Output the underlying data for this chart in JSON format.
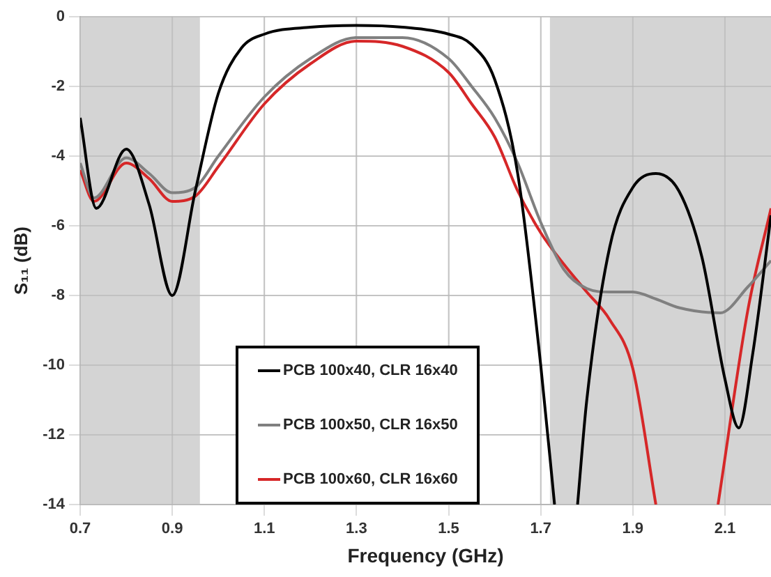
{
  "chart_data": {
    "type": "line",
    "xlabel": "Frequency (GHz)",
    "ylabel": "S₁₁ (dB)",
    "xlim": [
      0.7,
      2.2
    ],
    "xticks": [
      0.7,
      0.9,
      1.1,
      1.3,
      1.5,
      1.7,
      1.9,
      2.1
    ],
    "ylim": [
      -14,
      0
    ],
    "yticks": [
      0,
      -2,
      -4,
      -6,
      -8,
      -10,
      -12,
      -14
    ],
    "grid": true,
    "legend": "bottom",
    "marker": "none",
    "line_style": "solid",
    "bands": [
      {
        "axis": "x",
        "from": 0.7,
        "to": 0.96,
        "color": "#d4d4d4"
      },
      {
        "axis": "x",
        "from": 1.72,
        "to": 2.2,
        "color": "#d4d4d4"
      }
    ],
    "series": [
      {
        "name": "PCB 100x40, CLR 16x40",
        "color": "#000000",
        "x": [
          0.7,
          0.735,
          0.8,
          0.85,
          0.9,
          0.95,
          1.0,
          1.05,
          1.1,
          1.2,
          1.3,
          1.4,
          1.5,
          1.55,
          1.6,
          1.65,
          1.7,
          1.73,
          1.755,
          1.78,
          1.8,
          1.85,
          1.9,
          1.95,
          2.0,
          2.05,
          2.1,
          2.13,
          2.16,
          2.2
        ],
        "values": [
          -2.9,
          -5.5,
          -3.8,
          -5.4,
          -8.0,
          -5.0,
          -2.2,
          -0.9,
          -0.5,
          -0.3,
          -0.25,
          -0.3,
          -0.5,
          -0.8,
          -1.8,
          -4.5,
          -10,
          -14,
          null,
          -14,
          -11,
          -6.6,
          -4.9,
          -4.5,
          -5.0,
          -6.9,
          -10.4,
          -11.8,
          -9.7,
          -5.7
        ]
      },
      {
        "name": "PCB 100x50, CLR 16x50",
        "color": "#808080",
        "x": [
          0.7,
          0.73,
          0.8,
          0.85,
          0.9,
          0.95,
          1.0,
          1.1,
          1.2,
          1.3,
          1.4,
          1.5,
          1.55,
          1.6,
          1.65,
          1.7,
          1.75,
          1.8,
          1.85,
          1.9,
          1.95,
          2.0,
          2.09,
          2.15,
          2.2
        ],
        "values": [
          -4.2,
          -5.2,
          -4.05,
          -4.5,
          -5.05,
          -4.9,
          -4.0,
          -2.3,
          -1.2,
          -0.6,
          -0.6,
          -1.2,
          -2.0,
          -2.9,
          -4.2,
          -5.9,
          -7.25,
          -7.8,
          -7.9,
          -7.9,
          -8.1,
          -8.35,
          -8.5,
          -7.75,
          -7.0
        ]
      },
      {
        "name": "PCB 100x60, CLR 16x60",
        "color": "#d62728",
        "x": [
          0.7,
          0.73,
          0.8,
          0.85,
          0.9,
          0.95,
          1.0,
          1.1,
          1.2,
          1.3,
          1.4,
          1.5,
          1.55,
          1.6,
          1.65,
          1.7,
          1.75,
          1.8,
          1.85,
          1.9,
          1.95,
          2.02,
          2.085,
          2.15,
          2.2
        ],
        "values": [
          -4.4,
          -5.3,
          -4.2,
          -4.65,
          -5.3,
          -5.15,
          -4.3,
          -2.5,
          -1.35,
          -0.7,
          -0.85,
          -1.6,
          -2.5,
          -3.45,
          -5.0,
          -6.2,
          -7.1,
          -7.9,
          -8.7,
          -10.1,
          -14,
          null,
          -14,
          -8.4,
          -5.5
        ]
      }
    ]
  }
}
